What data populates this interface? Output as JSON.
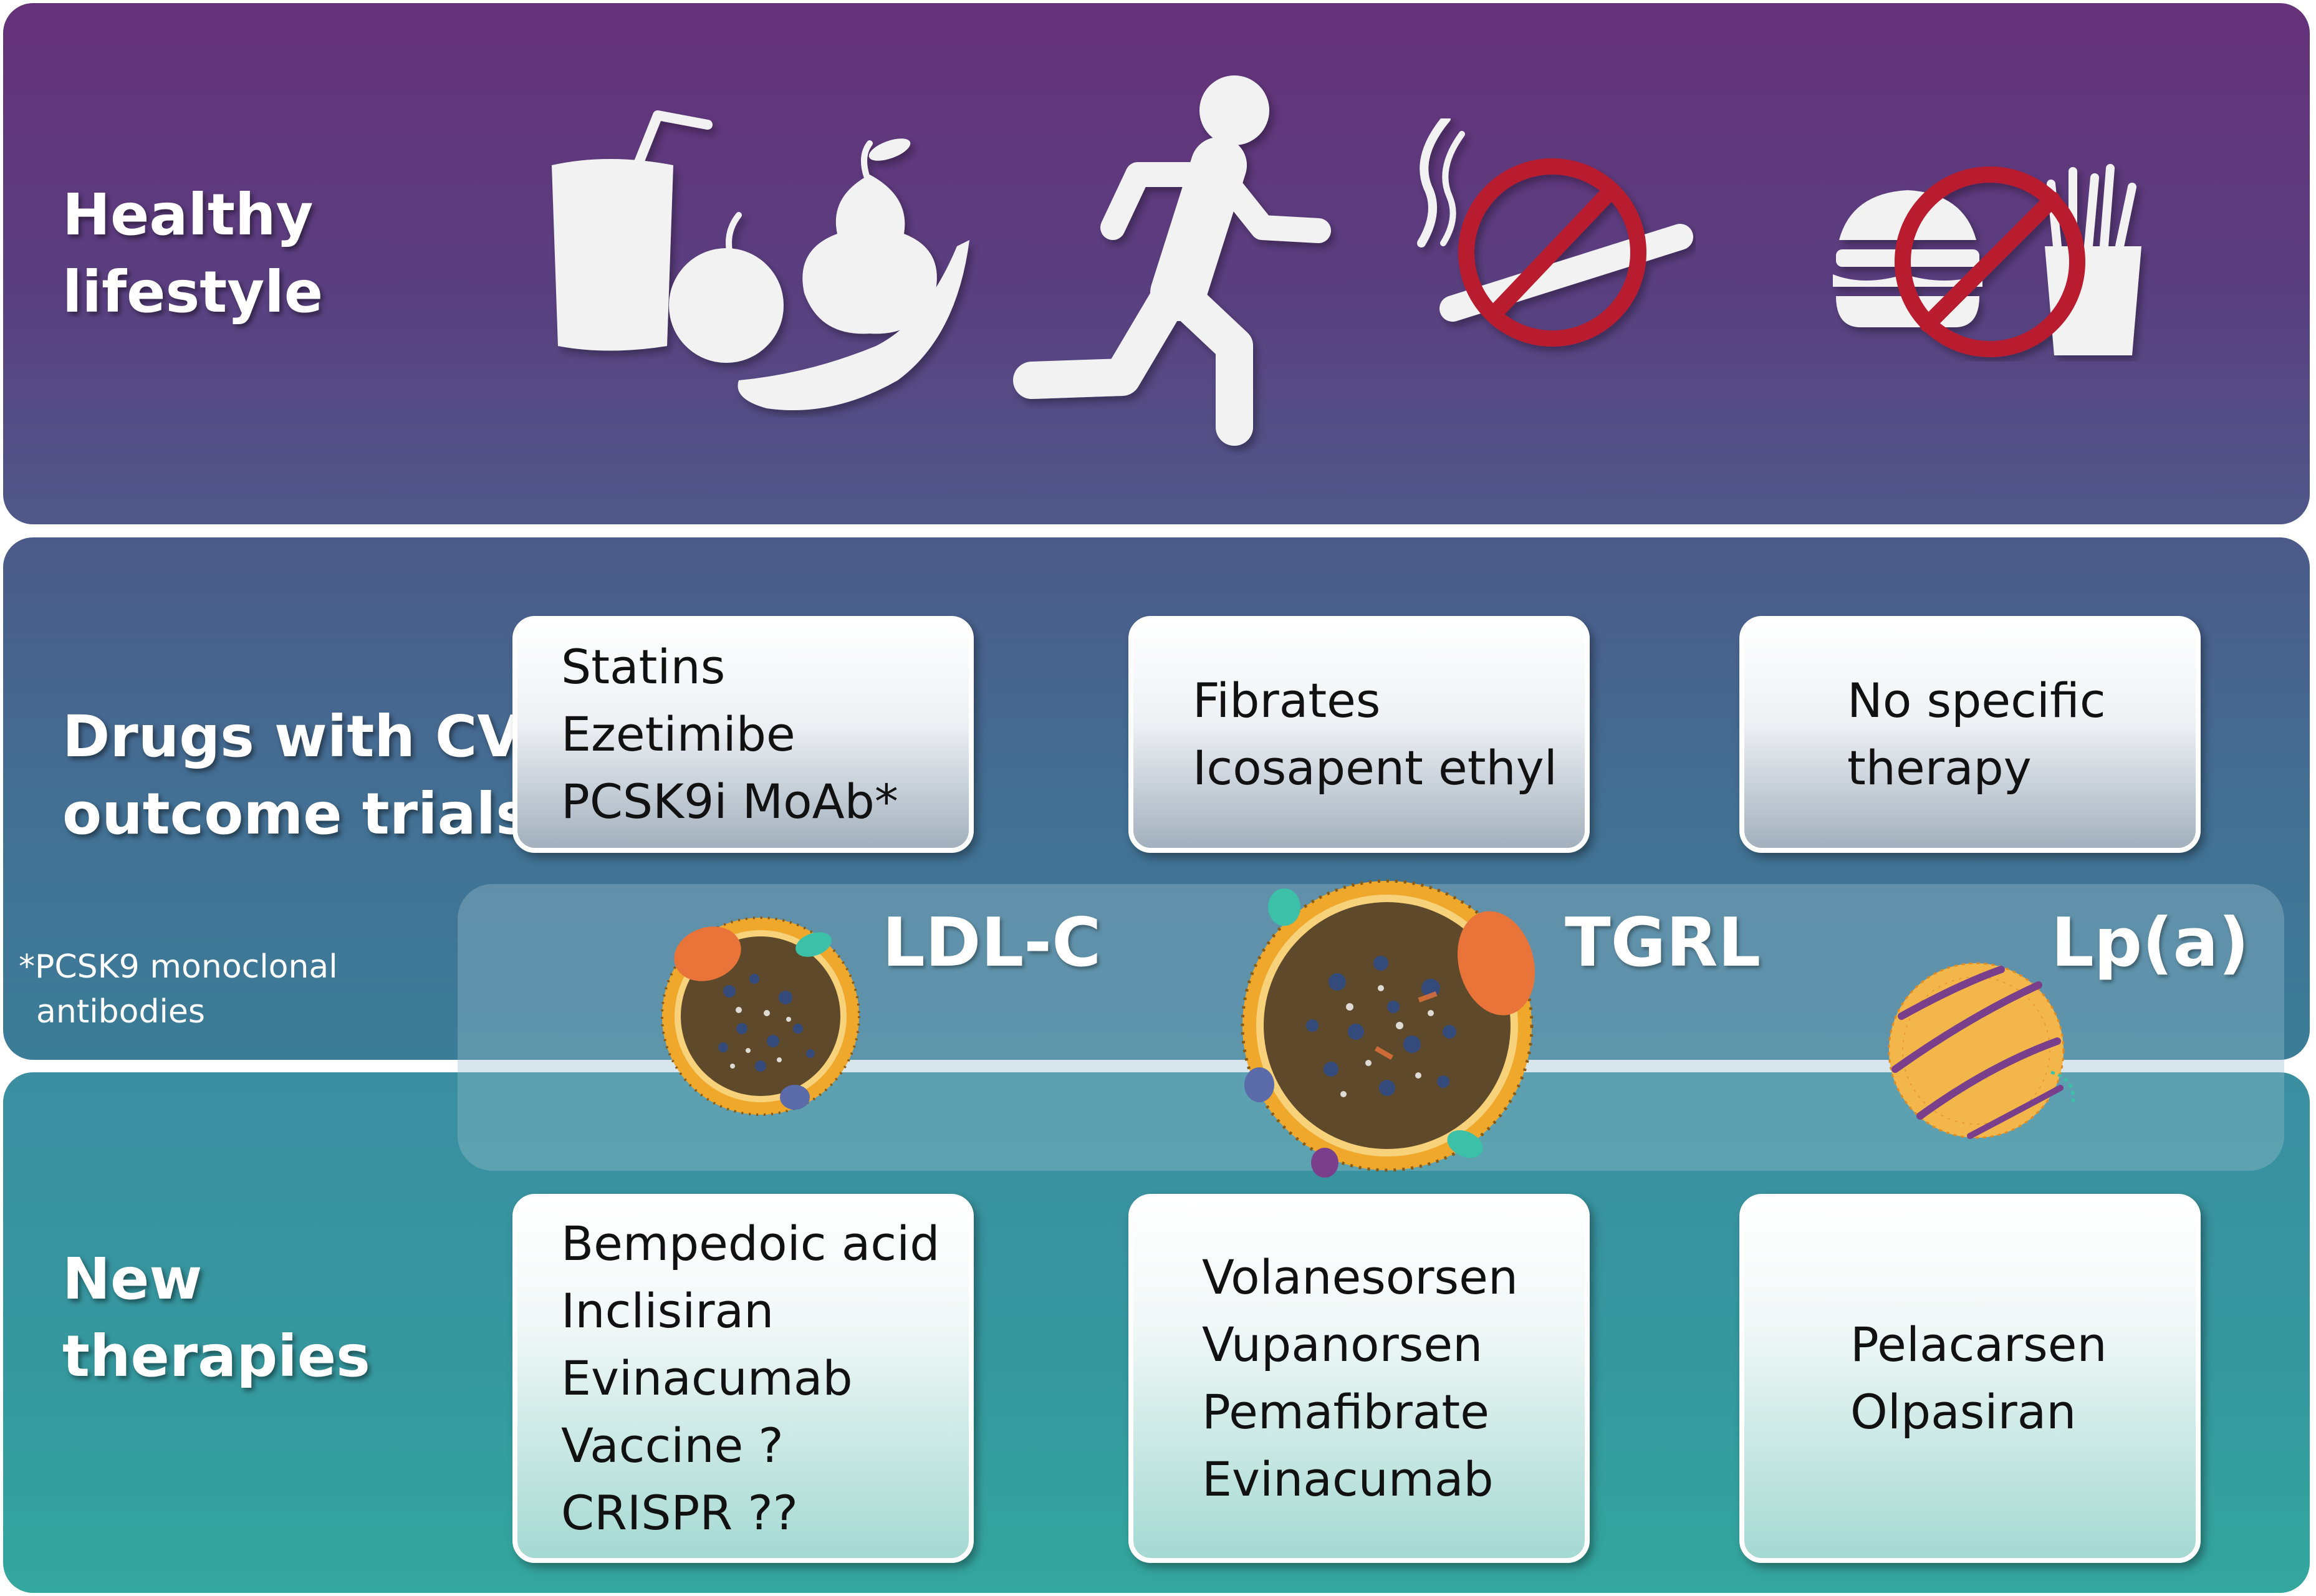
{
  "sections": {
    "lifestyle": {
      "title_line1": "Healthy",
      "title_line2": "lifestyle"
    },
    "drugs": {
      "title_line1": "Drugs with CV",
      "title_line2": "outcome trials"
    },
    "new": {
      "title_line1": "New",
      "title_line2": "therapies"
    }
  },
  "footnote": {
    "line1": "*PCSK9 monoclonal",
    "line2": "antibodies"
  },
  "columns": {
    "ldl": {
      "label": "LDL-C",
      "drugs": [
        "Statins",
        "Ezetimibe",
        "PCSK9i MoAb*"
      ],
      "new": [
        "Bempedoic acid",
        "Inclisiran",
        "Evinacumab",
        "Vaccine ?",
        "CRISPR ??"
      ]
    },
    "tgrl": {
      "label": "TGRL",
      "drugs": [
        "Fibrates",
        "Icosapent ethyl"
      ],
      "new": [
        "Volanesorsen",
        "Vupanorsen",
        "Pemafibrate",
        "Evinacumab"
      ]
    },
    "lpa": {
      "label": "Lp(a)",
      "drugs": [
        "No specific",
        "therapy"
      ],
      "new": [
        "Pelacarsen",
        "Olpasiran"
      ]
    }
  },
  "icons": {
    "food": "healthy-food-icon",
    "running": "running-person-icon",
    "no_smoking": "no-smoking-icon",
    "no_fast_food": "no-fast-food-icon",
    "ldl_particle": "ldl-particle-icon",
    "tgrl_particle": "tgrl-particle-icon",
    "lpa_particle": "lpa-particle-icon"
  },
  "colors": {
    "lifestyle_band": "#653179",
    "drugs_band": "#436f93",
    "new_band": "#35999f",
    "prohibition_red": "#b81e2d",
    "icon_white": "#f2f2f2",
    "particle_core": "#5e4a2a",
    "particle_shell": "#f0a82c"
  }
}
